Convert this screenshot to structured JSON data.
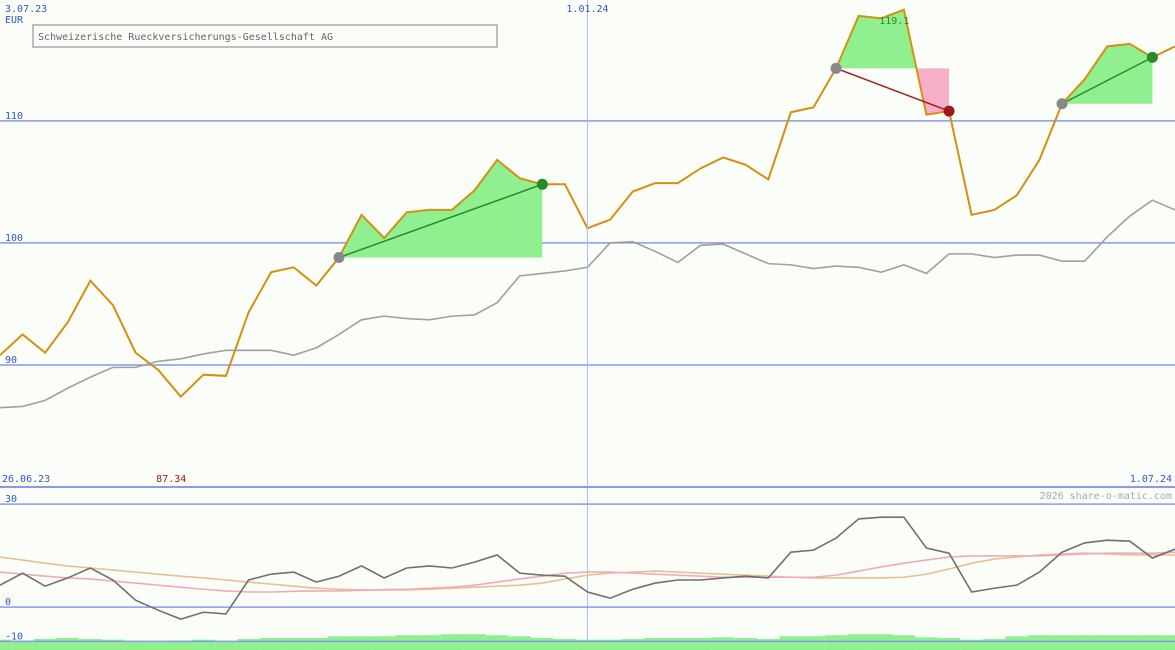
{
  "chart_data": [
    {
      "type": "line",
      "title": "Schweizerische Rueckversicherungs-Gesellschaft AG",
      "unit": "EUR",
      "xlim": [
        0,
        52
      ],
      "xticks": [
        {
          "value": 0,
          "label": "3.07.23"
        },
        {
          "value": 26,
          "label": "1.01.24"
        }
      ],
      "range_labels": [
        "26.06.23",
        "1.07.24"
      ],
      "ylim": [
        80,
        119.9
      ],
      "yticks": [
        90,
        100,
        110
      ],
      "grid": true,
      "series": [
        {
          "color": "#d4900f",
          "values": [
            90.8,
            92.5,
            91.0,
            93.5,
            96.9,
            94.9,
            91.0,
            89.6,
            87.4,
            89.2,
            89.1,
            94.3,
            97.6,
            98.0,
            96.5,
            98.8,
            102.3,
            100.4,
            102.5,
            102.7,
            102.7,
            104.3,
            106.8,
            105.3,
            104.8,
            104.8,
            101.2,
            101.9,
            104.2,
            104.9,
            104.9,
            106.1,
            107.0,
            106.4,
            105.2,
            110.7,
            111.1,
            114.3,
            118.6,
            118.4,
            119.1,
            110.5,
            110.8,
            102.3,
            102.7,
            103.9,
            106.8,
            111.4,
            113.4,
            116.1,
            116.3,
            115.2,
            116.1
          ]
        },
        {
          "color": "#a0a0a0",
          "values": [
            86.5,
            86.6,
            87.1,
            88.1,
            89.0,
            89.8,
            89.8,
            90.3,
            90.5,
            90.9,
            91.2,
            91.2,
            91.2,
            90.8,
            91.4,
            92.5,
            93.7,
            94.0,
            93.8,
            93.7,
            94.0,
            94.1,
            95.1,
            97.3,
            97.5,
            97.7,
            98.0,
            100.0,
            100.1,
            99.3,
            98.4,
            99.8,
            99.9,
            99.1,
            98.3,
            98.2,
            97.9,
            98.1,
            98.0,
            97.6,
            98.2,
            97.5,
            99.1,
            99.1,
            98.8,
            99.0,
            99.0,
            98.5,
            98.5,
            100.5,
            102.2,
            103.5,
            102.7
          ]
        }
      ],
      "trades": [
        {
          "from": 15,
          "to": 24,
          "color": "#2a8a2a"
        },
        {
          "from": 37,
          "to": 42,
          "color": "#a01818"
        },
        {
          "from": 47,
          "to": 51,
          "color": "#2a8a2a"
        }
      ],
      "annotations": [
        {
          "text": "119.1",
          "index": 39,
          "position": "top",
          "color": "#2a8a2a"
        },
        {
          "text": "87.34",
          "index": 7,
          "position": "bottom",
          "color": "#a01818"
        }
      ]
    },
    {
      "type": "line",
      "watermark": "2026 share-o-matic.com",
      "xlim": [
        0,
        52
      ],
      "ylim": [
        -12.5,
        35
      ],
      "yticks": [
        30,
        0,
        -10
      ],
      "bars": {
        "color": "#90f090",
        "values": [
          -9.5,
          -9.8,
          -9.3,
          -9.0,
          -9.3,
          -9.5,
          -10.0,
          -10.2,
          -9.8,
          -9.5,
          -10.0,
          -9.3,
          -9.0,
          -9.0,
          -9.0,
          -8.5,
          -8.5,
          -8.5,
          -8.2,
          -8.2,
          -7.9,
          -7.9,
          -8.2,
          -8.5,
          -9.0,
          -9.3,
          -9.5,
          -9.5,
          -9.3,
          -9.0,
          -9.0,
          -9.0,
          -8.8,
          -9.0,
          -9.3,
          -8.5,
          -8.5,
          -8.2,
          -7.9,
          -7.9,
          -8.2,
          -8.8,
          -9.0,
          -9.5,
          -9.3,
          -8.5,
          -8.2,
          -8.2,
          -8.2,
          -8.2,
          -8.2,
          -8.2,
          -8.2
        ]
      },
      "series": [
        {
          "color": "#e6c090",
          "values": [
            14.6,
            13.7,
            12.8,
            12.0,
            11.4,
            10.8,
            10.2,
            9.6,
            9.0,
            8.5,
            7.9,
            7.3,
            6.7,
            6.1,
            5.5,
            5.2,
            5.0,
            5.0,
            5.0,
            5.2,
            5.5,
            5.8,
            6.1,
            6.4,
            7.0,
            8.2,
            9.3,
            9.9,
            10.2,
            10.5,
            10.2,
            9.9,
            9.6,
            9.3,
            9.0,
            8.7,
            8.5,
            8.5,
            8.5,
            8.5,
            8.7,
            9.6,
            11.1,
            12.8,
            14.0,
            14.6,
            15.2,
            15.5,
            15.7,
            15.5,
            15.2,
            15.2,
            15.2
          ]
        },
        {
          "color": "#f4a8c0",
          "values": [
            10.2,
            9.6,
            9.0,
            8.5,
            8.2,
            7.6,
            7.0,
            6.4,
            5.8,
            5.2,
            4.7,
            4.4,
            4.4,
            4.6,
            4.7,
            4.7,
            4.9,
            5.1,
            5.2,
            5.5,
            5.8,
            6.4,
            7.3,
            8.2,
            9.0,
            9.9,
            10.2,
            10.2,
            9.9,
            9.6,
            9.3,
            9.0,
            8.7,
            8.7,
            8.7,
            8.7,
            8.7,
            9.3,
            10.5,
            11.7,
            12.8,
            13.7,
            14.6,
            14.9,
            14.9,
            14.9,
            14.9,
            15.2,
            15.5,
            15.7,
            15.7,
            15.7,
            16.0
          ]
        },
        {
          "color": "#707070",
          "values": [
            6.4,
            9.9,
            6.1,
            8.5,
            11.4,
            7.9,
            2.0,
            -0.9,
            -3.5,
            -1.5,
            -2.0,
            7.9,
            9.6,
            10.2,
            7.3,
            9.0,
            12.0,
            8.5,
            11.4,
            12.0,
            11.4,
            13.1,
            15.2,
            9.9,
            9.3,
            9.0,
            4.4,
            2.6,
            5.2,
            7.0,
            7.9,
            7.9,
            8.5,
            9.0,
            8.5,
            16.0,
            16.6,
            20.1,
            25.7,
            26.2,
            26.2,
            17.2,
            15.7,
            4.4,
            5.5,
            6.4,
            10.2,
            16.0,
            18.7,
            19.5,
            19.2,
            14.3,
            16.9
          ]
        }
      ]
    }
  ]
}
